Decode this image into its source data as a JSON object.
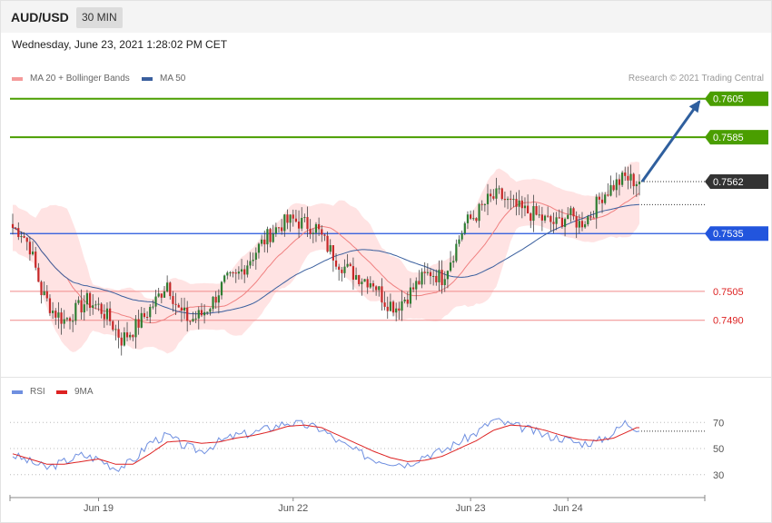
{
  "header": {
    "pair": "AUD/USD",
    "timeframe": "30 MIN"
  },
  "timestamp": "Wednesday, June 23, 2021 1:28:02 PM CET",
  "legend": {
    "ma20": {
      "label": "MA 20 + Bollinger Bands",
      "color": "#f08080"
    },
    "ma50": {
      "label": "MA 50",
      "color": "#3a5f9e"
    }
  },
  "credit": "Research © 2021 Trading Central",
  "chart_data": {
    "type": "candlestick",
    "ylim": [
      0.7463,
      0.7611
    ],
    "current_price": 0.7562,
    "levels": [
      {
        "label": "0.7605",
        "value": 0.7605,
        "color": "#4a9e00",
        "style": "resistance"
      },
      {
        "label": "0.7585",
        "value": 0.7585,
        "color": "#4a9e00",
        "style": "resistance"
      },
      {
        "label": "0.7562",
        "value": 0.7562,
        "color": "#333333",
        "style": "current"
      },
      {
        "label": "0.7535",
        "value": 0.7535,
        "color": "#2255dd",
        "style": "pivot"
      },
      {
        "label": "0.7505",
        "value": 0.7505,
        "color": "#dd2222",
        "style": "support"
      },
      {
        "label": "0.7490",
        "value": 0.749,
        "color": "#dd2222",
        "style": "support"
      }
    ],
    "price_path": [
      [
        0,
        0.7538
      ],
      [
        3,
        0.7536
      ],
      [
        6,
        0.7528
      ],
      [
        10,
        0.7505
      ],
      [
        14,
        0.7495
      ],
      [
        18,
        0.749
      ],
      [
        22,
        0.7495
      ],
      [
        26,
        0.75
      ],
      [
        30,
        0.7497
      ],
      [
        34,
        0.749
      ],
      [
        38,
        0.748
      ],
      [
        42,
        0.7485
      ],
      [
        46,
        0.7492
      ],
      [
        50,
        0.75
      ],
      [
        54,
        0.751
      ],
      [
        58,
        0.7495
      ],
      [
        62,
        0.749
      ],
      [
        66,
        0.7493
      ],
      [
        70,
        0.75
      ],
      [
        74,
        0.751
      ],
      [
        78,
        0.7512
      ],
      [
        82,
        0.752
      ],
      [
        86,
        0.7528
      ],
      [
        90,
        0.7535
      ],
      [
        94,
        0.754
      ],
      [
        98,
        0.7542
      ],
      [
        102,
        0.754
      ],
      [
        106,
        0.7538
      ],
      [
        110,
        0.7528
      ],
      [
        114,
        0.752
      ],
      [
        118,
        0.7515
      ],
      [
        122,
        0.7512
      ],
      [
        126,
        0.751
      ],
      [
        130,
        0.75
      ],
      [
        134,
        0.7497
      ],
      [
        138,
        0.7503
      ],
      [
        142,
        0.751
      ],
      [
        146,
        0.7515
      ],
      [
        150,
        0.7512
      ],
      [
        154,
        0.7525
      ],
      [
        158,
        0.754
      ],
      [
        162,
        0.7545
      ],
      [
        166,
        0.7552
      ],
      [
        170,
        0.7555
      ],
      [
        174,
        0.755
      ],
      [
        178,
        0.7547
      ],
      [
        182,
        0.7545
      ],
      [
        186,
        0.7542
      ],
      [
        190,
        0.754
      ],
      [
        194,
        0.7545
      ],
      [
        198,
        0.754
      ],
      [
        202,
        0.7545
      ],
      [
        206,
        0.7555
      ],
      [
        210,
        0.756
      ],
      [
        214,
        0.7564
      ],
      [
        218,
        0.7562
      ]
    ],
    "rsi": {
      "legend": [
        {
          "label": "RSI",
          "color": "#6f8fe0"
        },
        {
          "label": "9MA",
          "color": "#dd2222"
        }
      ],
      "levels": [
        {
          "label": "70",
          "value": 70
        },
        {
          "label": "50",
          "value": 50
        },
        {
          "label": "30",
          "value": 30
        }
      ],
      "ylim": [
        18,
        82
      ],
      "rsi_path": [
        [
          0,
          45
        ],
        [
          6,
          40
        ],
        [
          12,
          35
        ],
        [
          18,
          40
        ],
        [
          24,
          45
        ],
        [
          30,
          42
        ],
        [
          36,
          35
        ],
        [
          42,
          40
        ],
        [
          48,
          55
        ],
        [
          54,
          60
        ],
        [
          60,
          52
        ],
        [
          66,
          48
        ],
        [
          72,
          55
        ],
        [
          78,
          60
        ],
        [
          84,
          62
        ],
        [
          90,
          66
        ],
        [
          96,
          70
        ],
        [
          102,
          68
        ],
        [
          108,
          65
        ],
        [
          114,
          55
        ],
        [
          120,
          48
        ],
        [
          126,
          42
        ],
        [
          132,
          40
        ],
        [
          138,
          38
        ],
        [
          144,
          45
        ],
        [
          150,
          48
        ],
        [
          156,
          55
        ],
        [
          162,
          62
        ],
        [
          168,
          72
        ],
        [
          174,
          68
        ],
        [
          180,
          65
        ],
        [
          186,
          60
        ],
        [
          192,
          58
        ],
        [
          198,
          54
        ],
        [
          204,
          55
        ],
        [
          210,
          62
        ],
        [
          214,
          70
        ],
        [
          218,
          66
        ]
      ],
      "ma_path": [
        [
          0,
          46
        ],
        [
          6,
          42
        ],
        [
          12,
          38
        ],
        [
          18,
          38
        ],
        [
          24,
          40
        ],
        [
          30,
          42
        ],
        [
          36,
          38
        ],
        [
          42,
          38
        ],
        [
          48,
          46
        ],
        [
          54,
          55
        ],
        [
          60,
          56
        ],
        [
          66,
          54
        ],
        [
          72,
          55
        ],
        [
          78,
          58
        ],
        [
          84,
          60
        ],
        [
          90,
          63
        ],
        [
          96,
          67
        ],
        [
          102,
          68
        ],
        [
          108,
          66
        ],
        [
          114,
          60
        ],
        [
          120,
          54
        ],
        [
          126,
          48
        ],
        [
          132,
          43
        ],
        [
          138,
          40
        ],
        [
          144,
          41
        ],
        [
          150,
          44
        ],
        [
          156,
          50
        ],
        [
          162,
          56
        ],
        [
          168,
          64
        ],
        [
          174,
          68
        ],
        [
          180,
          67
        ],
        [
          186,
          64
        ],
        [
          192,
          60
        ],
        [
          198,
          57
        ],
        [
          204,
          56
        ],
        [
          210,
          58
        ],
        [
          214,
          62
        ],
        [
          218,
          66
        ]
      ]
    },
    "x_ticks": [
      {
        "label": "Jun 19",
        "index": 30
      },
      {
        "label": "Jun 22",
        "index": 98
      },
      {
        "label": "Jun 23",
        "index": 160
      },
      {
        "label": "Jun 24",
        "index": 194
      }
    ]
  }
}
